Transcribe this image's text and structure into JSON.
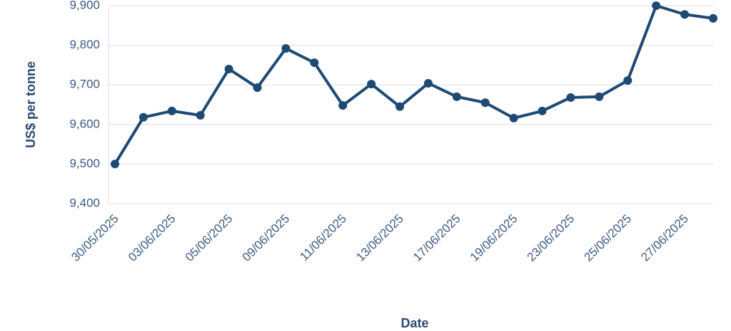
{
  "chart_data": {
    "type": "line",
    "x_label": "Date",
    "y_label": "US$ per tonne",
    "categories": [
      "30/05/2025",
      null,
      "03/06/2025",
      null,
      "05/06/2025",
      null,
      "09/06/2025",
      null,
      "11/06/2025",
      null,
      "13/06/2025",
      null,
      "17/06/2025",
      null,
      "19/06/2025",
      null,
      "23/06/2025",
      null,
      "25/06/2025",
      null,
      "27/06/2025",
      null
    ],
    "values": [
      9500,
      9618,
      9634,
      9623,
      9740,
      9693,
      9792,
      9756,
      9648,
      9702,
      9645,
      9704,
      9670,
      9655,
      9616,
      9634,
      9668,
      9670,
      9711,
      9900,
      9878,
      9868
    ],
    "color": "#1d4a73",
    "ylim": [
      9400,
      9900
    ],
    "yticks": [
      {
        "value": 9400,
        "label": "9,400"
      },
      {
        "value": 9500,
        "label": "9,500"
      },
      {
        "value": 9600,
        "label": "9,600"
      },
      {
        "value": 9700,
        "label": "9,700"
      },
      {
        "value": 9800,
        "label": "9,800"
      },
      {
        "value": 9900,
        "label": "9,900"
      }
    ],
    "grid": true
  }
}
